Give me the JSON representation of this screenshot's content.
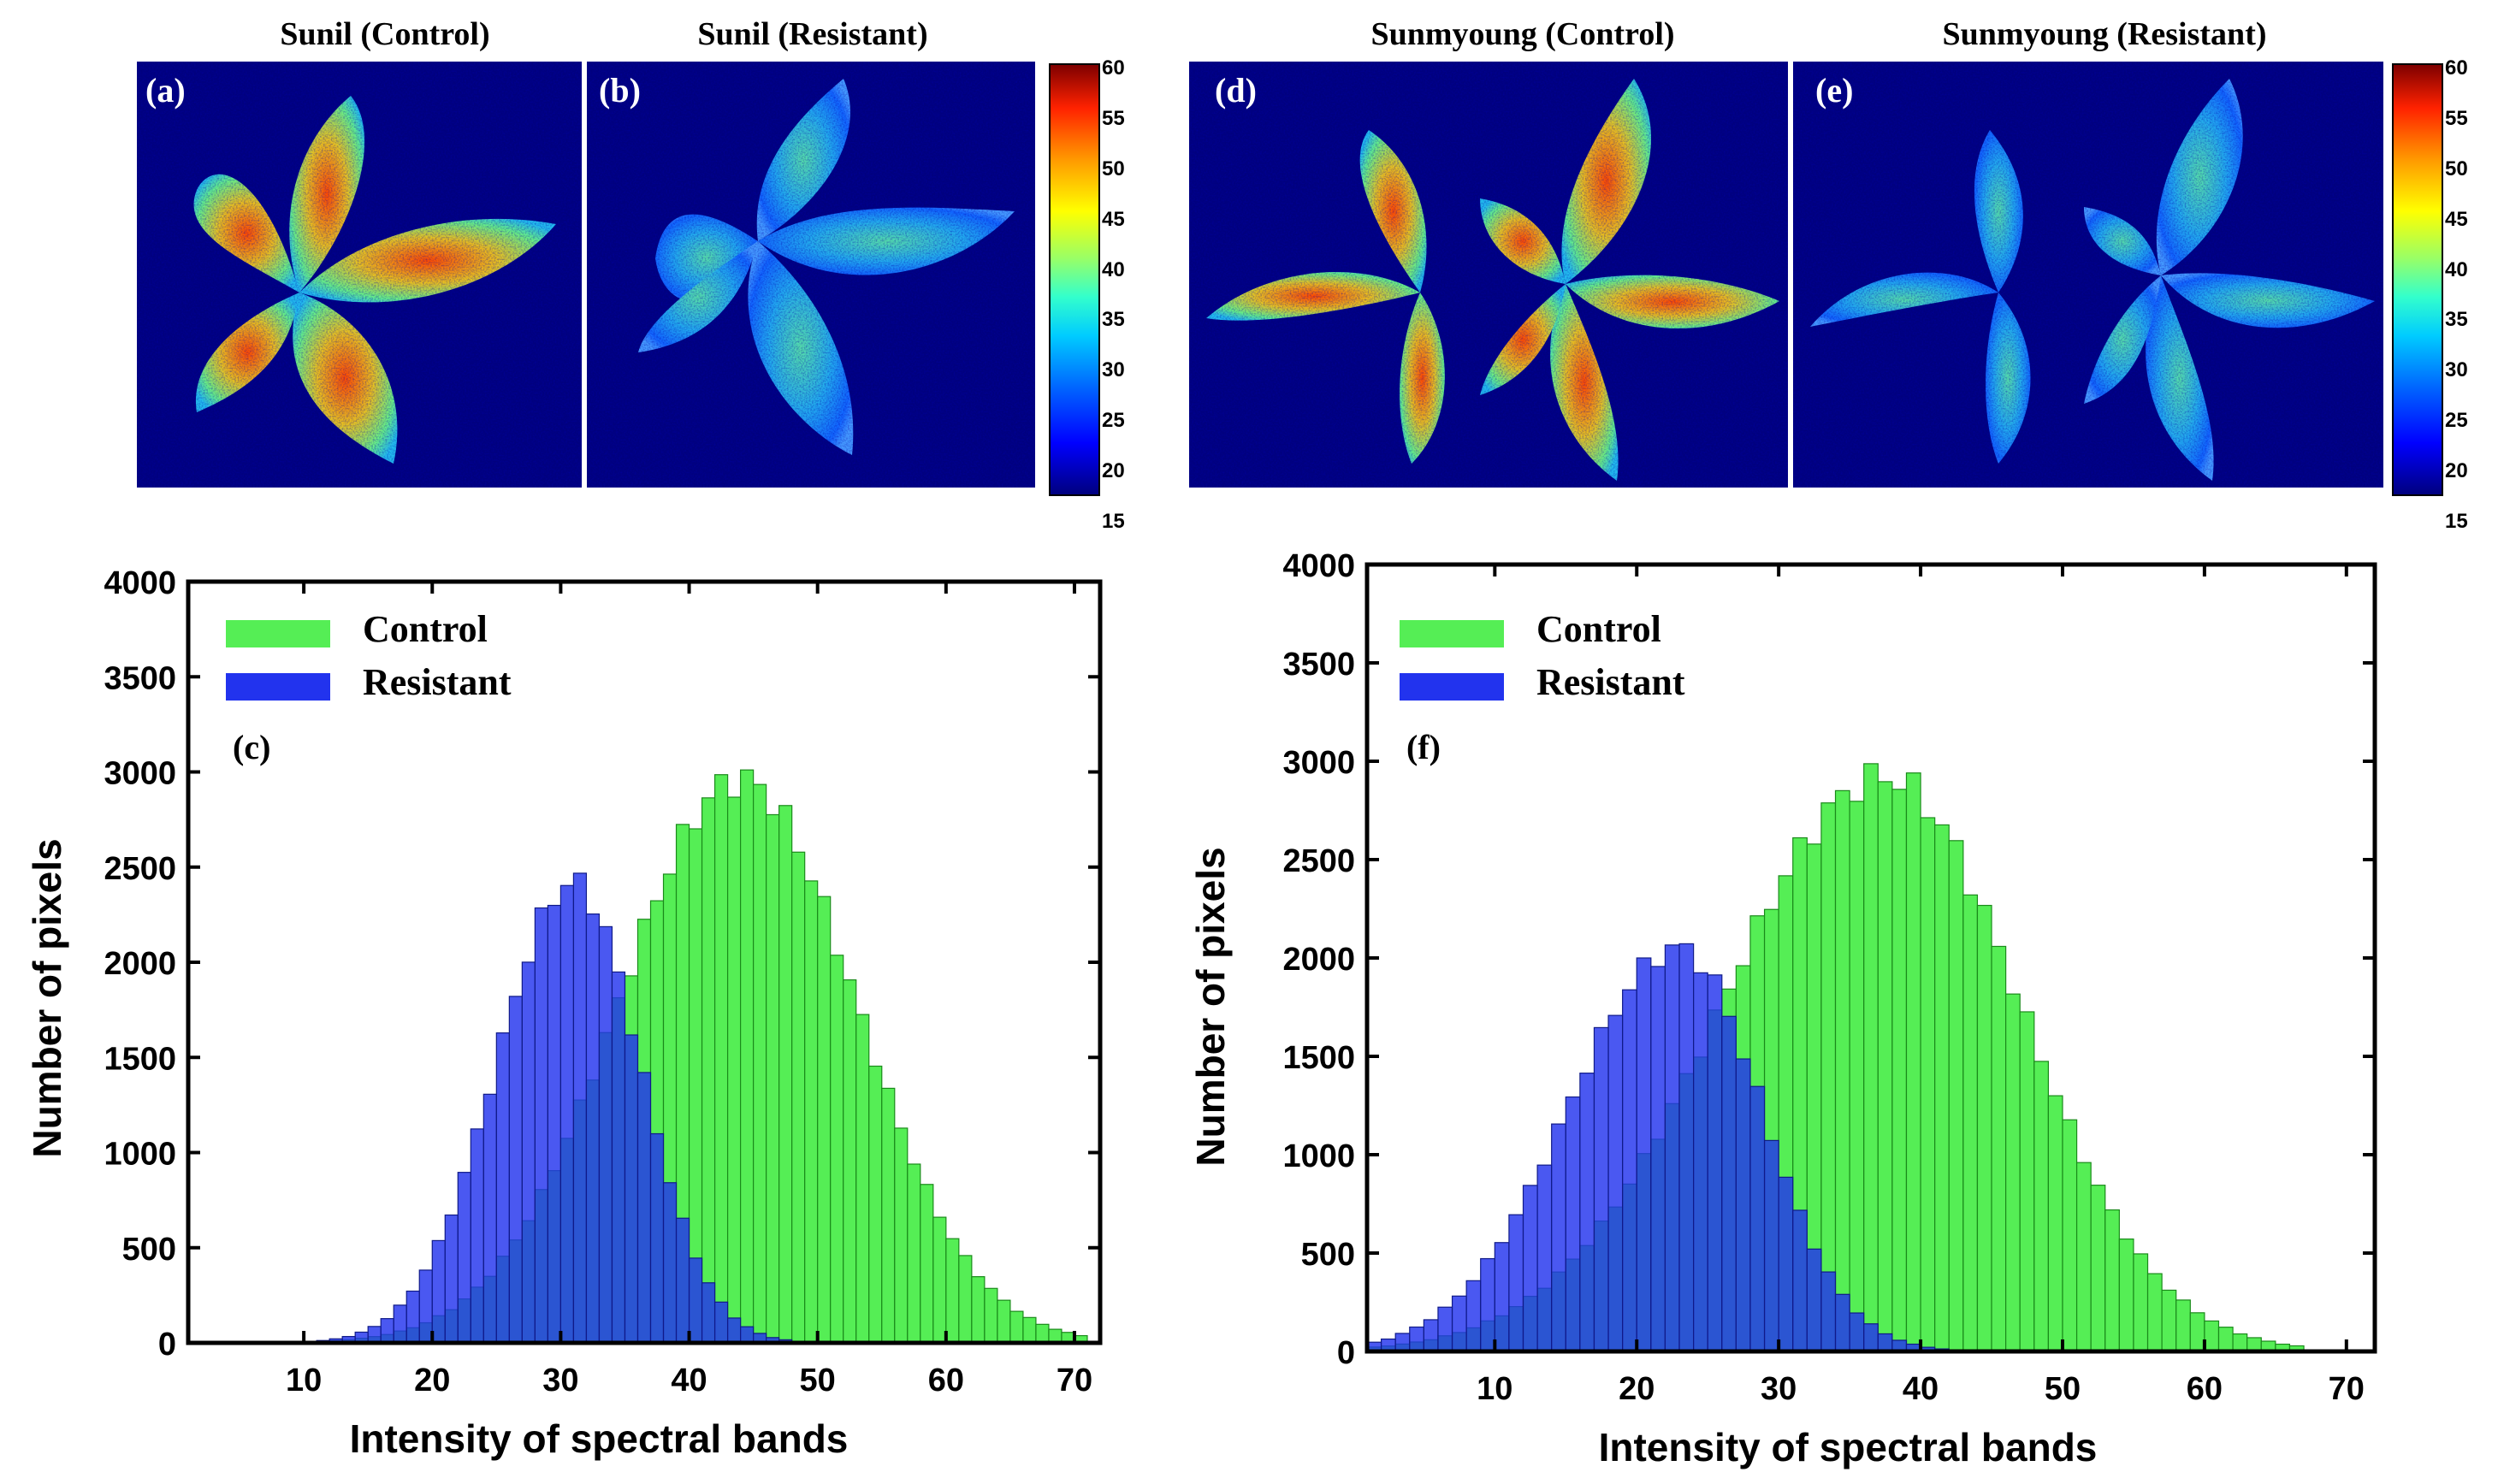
{
  "panels": {
    "a": {
      "title": "Sunil (Control)",
      "label": "(a)"
    },
    "b": {
      "title": "Sunil (Resistant)",
      "label": "(b)"
    },
    "d": {
      "title": "Sunmyoung (Control)",
      "label": "(d)"
    },
    "e": {
      "title": "Sunmyoung (Resistant)",
      "label": "(e)"
    }
  },
  "colorbar": {
    "ticks": [
      "60",
      "55",
      "50",
      "45",
      "40",
      "35",
      "30",
      "25",
      "20",
      "15"
    ]
  },
  "colors": {
    "control": "#55ee55",
    "resistant": "#2233ee",
    "map_bg": "#00007f"
  },
  "chart_data": [
    {
      "type": "bar",
      "panel_label": "(c)",
      "xlabel": "Intensity of spectral bands",
      "ylabel": "Number of pixels",
      "xlim": [
        1,
        72
      ],
      "ylim": [
        0,
        4000
      ],
      "xticks": [
        "10",
        "20",
        "30",
        "40",
        "50",
        "60",
        "70"
      ],
      "yticks": [
        "0",
        "500",
        "1000",
        "1500",
        "2000",
        "2500",
        "3000",
        "3500",
        "4000"
      ],
      "legend": [
        "Control",
        "Resistant"
      ],
      "legend_position": "top-left",
      "series": [
        {
          "name": "Control",
          "peak_x": 43.5,
          "peak_y": 2960,
          "spread_left": 9.5,
          "spread_right": 9.0,
          "start": 4,
          "end": 70
        },
        {
          "name": "Resistant",
          "peak_x": 30.5,
          "peak_y": 2420,
          "spread_left": 6.0,
          "spread_right": 5.2,
          "start": 4,
          "end": 62
        }
      ]
    },
    {
      "type": "bar",
      "panel_label": "(f)",
      "xlabel": "Intensity of spectral bands",
      "ylabel": "Number of pixels",
      "xlim": [
        1,
        72
      ],
      "ylim": [
        0,
        4000
      ],
      "xticks": [
        "10",
        "20",
        "30",
        "40",
        "50",
        "60",
        "70"
      ],
      "yticks": [
        "0",
        "500",
        "1000",
        "1500",
        "2000",
        "2500",
        "3000",
        "3500",
        "4000"
      ],
      "legend": [
        "Control",
        "Resistant"
      ],
      "legend_position": "top-left",
      "series": [
        {
          "name": "Control",
          "peak_x": 37,
          "peak_y": 2920,
          "spread_left": 11.5,
          "spread_right": 9.5,
          "start": 1,
          "end": 66
        },
        {
          "name": "Resistant",
          "peak_x": 22.5,
          "peak_y": 2050,
          "spread_left": 7.8,
          "spread_right": 5.8,
          "start": 1,
          "end": 52
        }
      ]
    }
  ]
}
